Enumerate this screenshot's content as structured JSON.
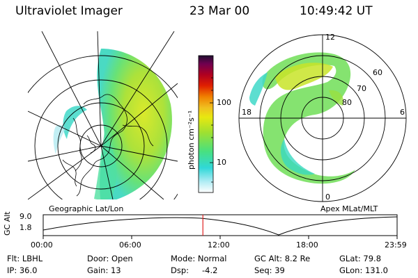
{
  "header": {
    "title": "Ultraviolet Imager",
    "date": "23 Mar 00",
    "time": "10:49:42 UT"
  },
  "geo_panel": {
    "label": "Geographic Lat/Lon"
  },
  "colorbar": {
    "unit": "photon cm⁻²s⁻¹",
    "ticks": [
      "100",
      "10"
    ],
    "scale": "log",
    "colors": [
      "#ffffff",
      "#a0e8f0",
      "#30d8d8",
      "#48e080",
      "#a0e030",
      "#e8e810",
      "#f0c020",
      "#f08000",
      "#e02000",
      "#b00020",
      "#700050",
      "#301040"
    ]
  },
  "apex_panel": {
    "label": "Apex MLat/MLT",
    "mlt_labels": {
      "top": "12",
      "bottom": "0",
      "left": "18",
      "right": "6"
    },
    "lat_labels": [
      "60",
      "70",
      "80"
    ]
  },
  "timeline": {
    "axis_label": "GC Alt",
    "y_top": "9.0",
    "y_bottom": "1.8",
    "ticks": [
      "00:00",
      "06:00",
      "12:00",
      "18:00",
      "23:59"
    ],
    "current_time_hours": 10.83,
    "marker_color": "#e02020"
  },
  "info": {
    "flt": "Flt: LBHL",
    "ip": "IP: 36.0",
    "door": "Door: Open",
    "gain": "Gain: 13",
    "mode": "Mode: Normal",
    "dsp_label": "Dsp:",
    "dsp_value": "-4.2",
    "gc_alt": "GC Alt: 8.2 Re",
    "seq": "Seq: 39",
    "glat": "GLat:  79.8",
    "glon": "GLon: 131.0"
  }
}
